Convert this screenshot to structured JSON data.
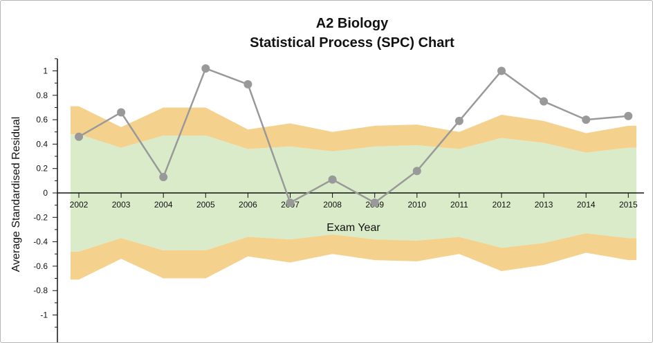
{
  "chart_data": {
    "type": "line",
    "title": [
      "A2 Biology",
      "Statistical Process (SPC) Chart"
    ],
    "xlabel": "Exam Year",
    "ylabel": "Average Standardised Residual",
    "ylim": [
      -1.1,
      1.1
    ],
    "yticks": [
      1,
      0.8,
      0.6,
      0.4,
      0.2,
      0,
      -0.2,
      -0.4,
      -0.6,
      -0.8,
      -1
    ],
    "ytick_labels": [
      "1",
      "0.8",
      "0.6",
      "0.4",
      "0.2",
      "0",
      "-0.2",
      "-0.4",
      "-0.6",
      "-0.8",
      "-1"
    ],
    "categories": [
      "2002",
      "2003",
      "2004",
      "2005",
      "2006",
      "2007",
      "2008",
      "2009",
      "2010",
      "2011",
      "2012",
      "2013",
      "2014",
      "2015"
    ],
    "series": [
      {
        "name": "Average Standardised Residual",
        "color": "#999999",
        "values": [
          0.46,
          0.66,
          0.13,
          1.02,
          0.89,
          -0.08,
          0.11,
          -0.08,
          0.18,
          0.59,
          1.0,
          0.75,
          0.6,
          0.63
        ]
      }
    ],
    "bands": {
      "inner_color": "#d9ebc8",
      "outer_color": "#f5d18e",
      "inner_limit": [
        0.48,
        0.37,
        0.47,
        0.47,
        0.36,
        0.38,
        0.34,
        0.38,
        0.39,
        0.36,
        0.45,
        0.41,
        0.33,
        0.37
      ],
      "outer_limit": [
        0.71,
        0.54,
        0.7,
        0.7,
        0.52,
        0.57,
        0.5,
        0.55,
        0.56,
        0.5,
        0.64,
        0.59,
        0.49,
        0.55
      ]
    }
  }
}
